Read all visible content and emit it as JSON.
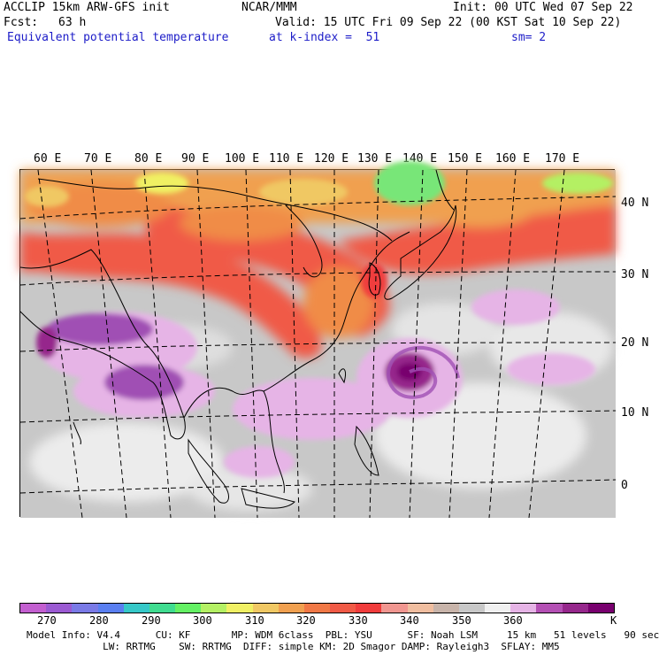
{
  "header": {
    "model_line": "ACCLIP 15km ARW-GFS init",
    "center": "NCAR/MMM",
    "init": "Init: 00 UTC Wed 07 Sep 22",
    "fcst_label": "Fcst:",
    "fcst_value": "63 h",
    "valid": "Valid: 15 UTC Fri 09 Sep 22 (00 KST Sat 10 Sep 22)",
    "field": "Equivalent potential temperature",
    "level": "at k-index =  51",
    "smooth": "sm= 2"
  },
  "map": {
    "lon_labels": [
      "60 E",
      "70 E",
      "80 E",
      "90 E",
      "100 E",
      "110 E",
      "120 E",
      "130 E",
      "140 E",
      "150 E",
      "160 E",
      "170 E"
    ],
    "lat_labels": [
      "40 N",
      "30 N",
      "20 N",
      "10 N",
      "0"
    ],
    "colors": {
      "background": "#c8c8c8",
      "warm_band": "#f05a46",
      "orange": "#f08c46",
      "green": "#78e678",
      "purple": "#a050b4",
      "lilac": "#e6b4e6",
      "coast": "#000000"
    }
  },
  "colorbar": {
    "colors": [
      "#c35fd0",
      "#9b5ad2",
      "#7a7ae6",
      "#5a7ff0",
      "#36c8c8",
      "#40dc90",
      "#64f064",
      "#b4f064",
      "#f0f064",
      "#f0c864",
      "#f0a050",
      "#f07846",
      "#f05a46",
      "#f03c3c",
      "#f09690",
      "#f0bea0",
      "#c8b4aa",
      "#c8c8c8",
      "#f0f0f0",
      "#e6b4e6",
      "#b450b4",
      "#96288c",
      "#78006e"
    ],
    "labels": [
      "270",
      "280",
      "290",
      "300",
      "310",
      "320",
      "330",
      "340",
      "350",
      "360"
    ],
    "unit": "K"
  },
  "footer": {
    "line1": "Model Info: V4.4      CU: KF       MP: WDM 6class  PBL: YSU      SF: Noah LSM     15 km   51 levels   90 sec",
    "line2": "             LW: RRTMG    SW: RRTMG  DIFF: simple KM: 2D Smagor DAMP: Rayleigh3  SFLAY: MM5"
  }
}
